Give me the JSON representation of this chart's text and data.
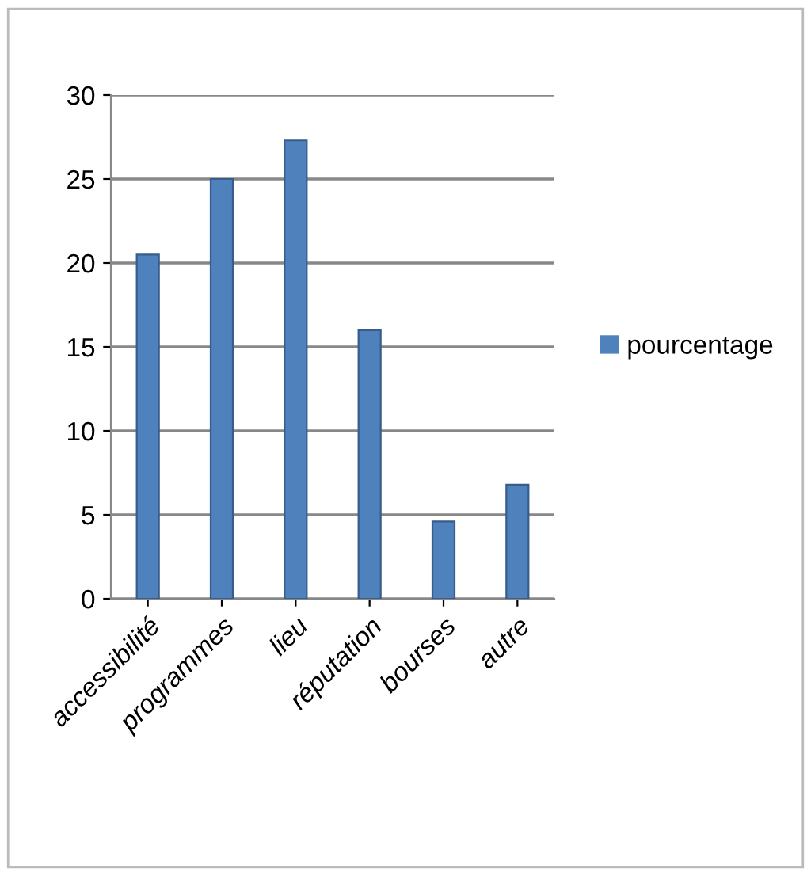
{
  "chart_data": {
    "type": "bar",
    "categories": [
      "accessibilité",
      "programmes",
      "lieu",
      "réputation",
      "bourses",
      "autre"
    ],
    "series": [
      {
        "name": "pourcentage",
        "color": "#4f81bd",
        "values": [
          20.5,
          25,
          27.3,
          16,
          4.6,
          6.8
        ]
      }
    ],
    "ylim": [
      0,
      30
    ],
    "yticks": [
      0,
      5,
      10,
      15,
      20,
      25,
      30
    ],
    "grid": "y",
    "legend": "right"
  }
}
